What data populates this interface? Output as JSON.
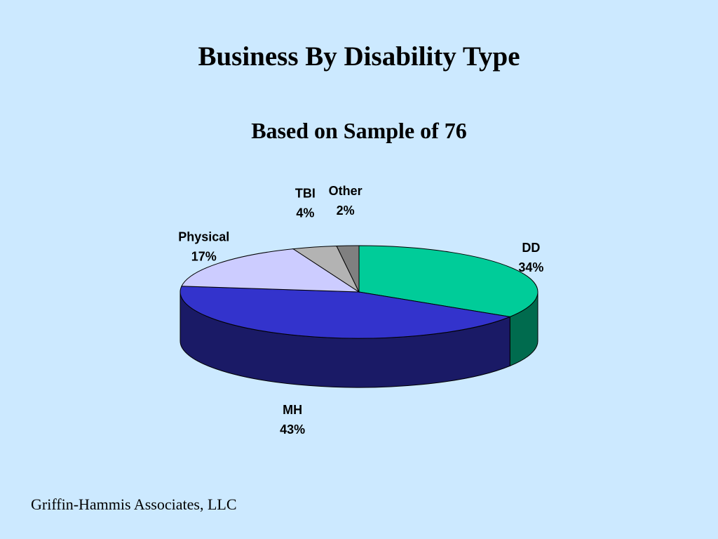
{
  "slide": {
    "title": "Business By Disability Type",
    "subtitle": "Based on Sample of 76",
    "footer": "Griffin-Hammis Associates, LLC",
    "background": "#cce9ff"
  },
  "chart_data": {
    "type": "pie",
    "style": "3d",
    "title": "Business By Disability Type",
    "subtitle": "Based on Sample of 76",
    "slices": [
      {
        "label": "DD",
        "value": 34,
        "value_label": "34%",
        "color": "#00cc99",
        "side_color": "#006b4e"
      },
      {
        "label": "MH",
        "value": 43,
        "value_label": "43%",
        "color": "#3333cc",
        "side_color": "#1a1a66"
      },
      {
        "label": "Physical",
        "value": 17,
        "value_label": "17%",
        "color": "#ccccff",
        "side_color": "#8080b3"
      },
      {
        "label": "TBI",
        "value": 4,
        "value_label": "4%",
        "color": "#b3b3b3",
        "side_color": "#737373"
      },
      {
        "label": "Other",
        "value": 2,
        "value_label": "2%",
        "color": "#808080",
        "side_color": "#4d4d4d"
      }
    ]
  }
}
